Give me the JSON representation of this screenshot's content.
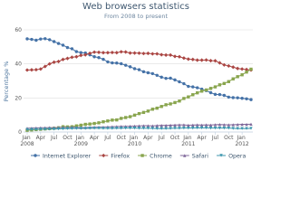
{
  "chart_data": {
    "type": "line",
    "title": "Web browsers statistics",
    "subtitle": "From 2008 to present",
    "y_label": "Percentage %",
    "categories": [
      "Jan 2008",
      null,
      null,
      "Apr",
      null,
      null,
      "Jul",
      null,
      null,
      "Oct",
      null,
      null,
      "Jan 2009",
      null,
      null,
      "Apr",
      null,
      null,
      "Jul",
      null,
      null,
      "Oct",
      null,
      null,
      "Jan 2010",
      null,
      null,
      "Apr",
      null,
      null,
      "Jul",
      null,
      null,
      "Oct",
      null,
      null,
      "Jan 2011",
      null,
      null,
      "Apr",
      null,
      null,
      "Jul",
      null,
      null,
      "Oct",
      null,
      null,
      "Jan 2012",
      null,
      null
    ],
    "ylim": [
      0,
      60
    ],
    "yticks": [
      0,
      20,
      40,
      60
    ],
    "grid": true,
    "series": [
      {
        "name": "Internet Explorer",
        "color": "#4572a7",
        "values": [
          54.7,
          54.4,
          53.9,
          54.6,
          54.8,
          54.2,
          53.1,
          52.0,
          51.0,
          49.6,
          48.9,
          47.2,
          46.6,
          46.4,
          45.3,
          44.2,
          43.7,
          42.7,
          41.2,
          40.6,
          40.5,
          40.1,
          39.2,
          38.3,
          37.2,
          36.6,
          35.4,
          34.8,
          34.3,
          33.3,
          32.2,
          31.5,
          31.6,
          30.6,
          29.5,
          28.4,
          26.8,
          26.5,
          26.0,
          25.2,
          24.3,
          23.1,
          22.1,
          22.0,
          21.5,
          20.5,
          20.2,
          20.1,
          19.8,
          19.5,
          19.0
        ]
      },
      {
        "name": "Firefox",
        "color": "#aa4643",
        "values": [
          36.4,
          36.5,
          36.6,
          37.0,
          38.5,
          40.0,
          41.0,
          41.4,
          42.6,
          43.2,
          43.9,
          44.2,
          45.0,
          45.3,
          46.2,
          46.9,
          46.8,
          46.6,
          46.6,
          46.7,
          46.6,
          47.1,
          47.0,
          46.4,
          46.4,
          46.3,
          46.1,
          46.2,
          45.9,
          45.9,
          45.4,
          45.2,
          45.2,
          44.4,
          44.2,
          43.4,
          42.8,
          42.6,
          42.2,
          42.2,
          42.3,
          41.9,
          41.8,
          40.6,
          39.4,
          38.8,
          38.1,
          37.3,
          37.0,
          36.7,
          36.4
        ]
      },
      {
        "name": "Chrome",
        "color": "#89a54e",
        "values": [
          1.0,
          1.2,
          1.4,
          1.6,
          1.8,
          2.0,
          2.2,
          2.5,
          3.1,
          3.0,
          3.1,
          3.6,
          4.0,
          4.5,
          4.7,
          5.0,
          5.4,
          6.0,
          6.5,
          7.0,
          7.1,
          8.0,
          8.5,
          9.0,
          9.9,
          10.8,
          11.5,
          12.3,
          13.4,
          14.0,
          15.0,
          16.0,
          16.5,
          17.3,
          18.2,
          19.7,
          20.6,
          21.9,
          23.0,
          24.0,
          24.7,
          25.6,
          26.5,
          27.7,
          28.5,
          29.6,
          31.2,
          32.5,
          33.6,
          35.2,
          36.9
        ]
      },
      {
        "name": "Safari",
        "color": "#80699b",
        "values": [
          2.2,
          2.3,
          2.4,
          2.5,
          2.5,
          2.6,
          2.5,
          2.6,
          2.7,
          2.7,
          2.8,
          2.7,
          2.6,
          2.6,
          2.7,
          2.8,
          2.9,
          2.9,
          3.0,
          3.1,
          3.2,
          3.3,
          3.3,
          3.4,
          3.5,
          3.6,
          3.7,
          3.7,
          3.6,
          3.8,
          3.9,
          3.9,
          4.0,
          4.1,
          4.2,
          4.2,
          4.0,
          4.1,
          4.2,
          4.1,
          4.2,
          4.1,
          4.3,
          4.4,
          4.3,
          4.2,
          4.3,
          4.4,
          4.5,
          4.5,
          4.6
        ]
      },
      {
        "name": "Opera",
        "color": "#3d96ae",
        "values": [
          1.4,
          1.5,
          1.5,
          1.6,
          1.6,
          1.7,
          1.7,
          1.8,
          1.9,
          2.0,
          2.0,
          2.1,
          2.1,
          2.1,
          2.2,
          2.2,
          2.2,
          2.1,
          2.1,
          2.1,
          2.2,
          2.2,
          2.3,
          2.3,
          2.3,
          2.2,
          2.2,
          2.2,
          2.1,
          2.0,
          2.0,
          2.0,
          2.1,
          2.2,
          2.2,
          2.3,
          2.3,
          2.3,
          2.4,
          2.4,
          2.4,
          2.3,
          2.3,
          2.3,
          2.3,
          2.3,
          2.1,
          2.0,
          2.0,
          2.0,
          2.1
        ]
      }
    ]
  }
}
